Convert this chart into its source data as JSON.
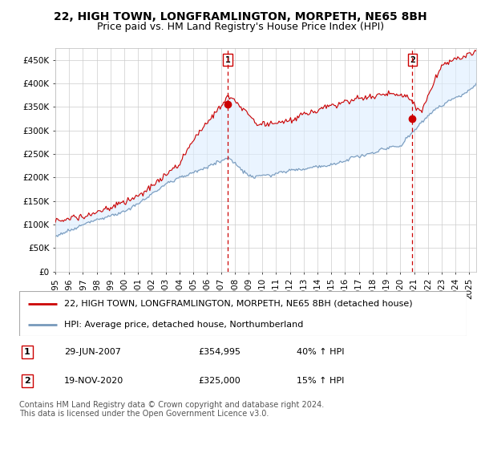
{
  "title": "22, HIGH TOWN, LONGFRAMLINGTON, MORPETH, NE65 8BH",
  "subtitle": "Price paid vs. HM Land Registry's House Price Index (HPI)",
  "ylabel_ticks": [
    "£0",
    "£50K",
    "£100K",
    "£150K",
    "£200K",
    "£250K",
    "£300K",
    "£350K",
    "£400K",
    "£450K"
  ],
  "ytick_values": [
    0,
    50000,
    100000,
    150000,
    200000,
    250000,
    300000,
    350000,
    400000,
    450000
  ],
  "ylim": [
    0,
    475000
  ],
  "xlim_start": 1995.0,
  "xlim_end": 2025.5,
  "background_color": "#ffffff",
  "grid_color": "#cccccc",
  "fill_color": "#ddeeff",
  "sale1_date": 2007.49,
  "sale1_price": 354995,
  "sale1_label": "1",
  "sale2_date": 2020.88,
  "sale2_price": 325000,
  "sale2_label": "2",
  "red_line_color": "#cc0000",
  "blue_line_color": "#7799bb",
  "dashed_line_color": "#cc0000",
  "legend_label1": "22, HIGH TOWN, LONGFRAMLINGTON, MORPETH, NE65 8BH (detached house)",
  "legend_label2": "HPI: Average price, detached house, Northumberland",
  "note1_num": "1",
  "note1_date": "29-JUN-2007",
  "note1_price": "£354,995",
  "note1_hpi": "40% ↑ HPI",
  "note2_num": "2",
  "note2_date": "19-NOV-2020",
  "note2_price": "£325,000",
  "note2_hpi": "15% ↑ HPI",
  "footer": "Contains HM Land Registry data © Crown copyright and database right 2024.\nThis data is licensed under the Open Government Licence v3.0.",
  "title_fontsize": 10,
  "subtitle_fontsize": 9,
  "tick_fontsize": 7.5,
  "legend_fontsize": 8,
  "note_fontsize": 8,
  "footer_fontsize": 7
}
